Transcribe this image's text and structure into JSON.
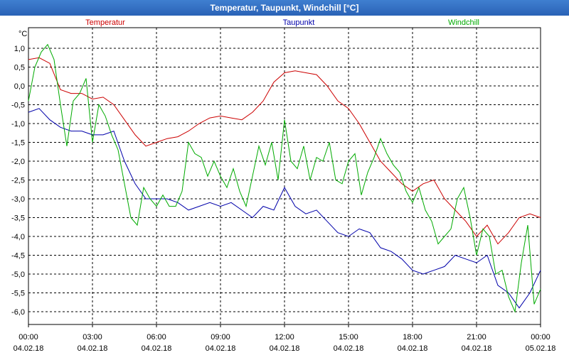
{
  "window": {
    "title": "Temperatur, Taupunkt, Windchill [°C]"
  },
  "chart_data": {
    "type": "line",
    "title": "Temperatur, Taupunkt, Windchill [°C]",
    "ylabel": "°C",
    "xlabel": "",
    "ylim": [
      -6.5,
      1.5
    ],
    "xlim": [
      0,
      24
    ],
    "grid": true,
    "legend_placement": "top",
    "x_ticks": [
      {
        "time": "00:00",
        "date": "04.02.18"
      },
      {
        "time": "03:00",
        "date": "04.02.18"
      },
      {
        "time": "06:00",
        "date": "04.02.18"
      },
      {
        "time": "09:00",
        "date": "04.02.18"
      },
      {
        "time": "12:00",
        "date": "04.02.18"
      },
      {
        "time": "15:00",
        "date": "04.02.18"
      },
      {
        "time": "18:00",
        "date": "04.02.18"
      },
      {
        "time": "21:00",
        "date": "04.02.18"
      },
      {
        "time": "00:00",
        "date": "05.02.18"
      }
    ],
    "y_ticks": [
      "1,0",
      "0,5",
      "0,0",
      "-0,5",
      "-1,0",
      "-1,5",
      "-2,0",
      "-2,5",
      "-3,0",
      "-3,5",
      "-4,0",
      "-4,5",
      "-5,0",
      "-5,5",
      "-6,0"
    ],
    "y_tick_values": [
      1.0,
      0.5,
      0.0,
      -0.5,
      -1.0,
      -1.5,
      -2.0,
      -2.5,
      -3.0,
      -3.5,
      -4.0,
      -4.5,
      -5.0,
      -5.5,
      -6.0
    ],
    "series": [
      {
        "name": "Temperatur",
        "color": "#cc0000",
        "x": [
          0,
          0.5,
          1,
          1.5,
          2,
          2.5,
          3,
          3.5,
          4,
          4.5,
          5,
          5.5,
          6,
          6.5,
          7,
          7.5,
          8,
          8.5,
          9,
          9.5,
          10,
          10.5,
          11,
          11.5,
          12,
          12.5,
          13,
          13.5,
          14,
          14.5,
          15,
          15.5,
          16,
          16.5,
          17,
          17.5,
          18,
          18.5,
          19,
          19.5,
          20,
          20.5,
          21,
          21.5,
          22,
          22.5,
          23,
          23.5,
          24
        ],
        "values": [
          0.7,
          0.75,
          0.6,
          -0.1,
          -0.2,
          -0.2,
          -0.35,
          -0.3,
          -0.5,
          -0.9,
          -1.3,
          -1.6,
          -1.5,
          -1.4,
          -1.35,
          -1.2,
          -1.0,
          -0.85,
          -0.8,
          -0.85,
          -0.9,
          -0.7,
          -0.4,
          0.1,
          0.35,
          0.4,
          0.35,
          0.3,
          0.0,
          -0.4,
          -0.6,
          -1.0,
          -1.5,
          -2.0,
          -2.3,
          -2.6,
          -2.8,
          -2.6,
          -2.5,
          -3.0,
          -3.3,
          -3.6,
          -4.0,
          -3.7,
          -4.2,
          -3.9,
          -3.5,
          -3.4,
          -3.5
        ]
      },
      {
        "name": "Taupunkt",
        "color": "#0000aa",
        "x": [
          0,
          0.5,
          1,
          1.5,
          2,
          2.5,
          3,
          3.5,
          4,
          4.5,
          5,
          5.5,
          6,
          6.5,
          7,
          7.5,
          8,
          8.5,
          9,
          9.5,
          10,
          10.5,
          11,
          11.5,
          12,
          12.5,
          13,
          13.5,
          14,
          14.5,
          15,
          15.5,
          16,
          16.5,
          17,
          17.5,
          18,
          18.5,
          19,
          19.5,
          20,
          20.5,
          21,
          21.5,
          22,
          22.5,
          23,
          23.5,
          24
        ],
        "values": [
          -0.7,
          -0.6,
          -0.9,
          -1.1,
          -1.2,
          -1.2,
          -1.3,
          -1.3,
          -1.2,
          -2.0,
          -2.6,
          -3.0,
          -3.0,
          -3.0,
          -3.1,
          -3.3,
          -3.2,
          -3.1,
          -3.2,
          -3.1,
          -3.3,
          -3.5,
          -3.2,
          -3.3,
          -2.7,
          -3.2,
          -3.4,
          -3.3,
          -3.6,
          -3.9,
          -4.0,
          -3.8,
          -3.9,
          -4.3,
          -4.4,
          -4.6,
          -4.9,
          -5.0,
          -4.9,
          -4.8,
          -4.5,
          -4.6,
          -4.7,
          -4.5,
          -5.3,
          -5.5,
          -5.9,
          -5.5,
          -4.9
        ]
      },
      {
        "name": "Windchill",
        "color": "#00aa00",
        "x": [
          0,
          0.3,
          0.6,
          0.9,
          1.2,
          1.5,
          1.8,
          2.1,
          2.4,
          2.7,
          3.0,
          3.3,
          3.6,
          3.9,
          4.2,
          4.5,
          4.8,
          5.1,
          5.4,
          5.7,
          6.0,
          6.3,
          6.6,
          6.9,
          7.2,
          7.5,
          7.8,
          8.1,
          8.4,
          8.7,
          9.0,
          9.3,
          9.6,
          9.9,
          10.2,
          10.5,
          10.8,
          11.1,
          11.4,
          11.7,
          12.0,
          12.3,
          12.6,
          12.9,
          13.2,
          13.5,
          13.8,
          14.1,
          14.4,
          14.7,
          15.0,
          15.3,
          15.6,
          15.9,
          16.2,
          16.5,
          16.8,
          17.1,
          17.4,
          17.7,
          18.0,
          18.3,
          18.6,
          18.9,
          19.2,
          19.5,
          19.8,
          20.1,
          20.4,
          20.7,
          21.0,
          21.3,
          21.6,
          21.9,
          22.2,
          22.5,
          22.8,
          23.1,
          23.4,
          23.7,
          24.0
        ],
        "values": [
          -0.4,
          0.5,
          0.9,
          1.1,
          0.7,
          -0.5,
          -1.6,
          -0.4,
          -0.2,
          0.2,
          -1.5,
          -0.5,
          -0.8,
          -1.3,
          -1.7,
          -2.6,
          -3.5,
          -3.7,
          -2.7,
          -3.0,
          -3.2,
          -2.9,
          -3.2,
          -3.2,
          -2.8,
          -1.5,
          -1.8,
          -1.9,
          -2.4,
          -2.0,
          -2.4,
          -2.7,
          -2.2,
          -2.8,
          -3.2,
          -2.4,
          -1.6,
          -2.1,
          -1.5,
          -2.5,
          -0.9,
          -2.0,
          -2.2,
          -1.6,
          -2.5,
          -1.9,
          -2.0,
          -1.5,
          -2.5,
          -2.6,
          -2.0,
          -1.8,
          -2.9,
          -2.3,
          -1.9,
          -1.4,
          -1.8,
          -2.1,
          -2.3,
          -2.8,
          -3.1,
          -2.7,
          -3.3,
          -3.6,
          -4.2,
          -4.0,
          -3.8,
          -3.0,
          -2.7,
          -3.5,
          -4.5,
          -3.8,
          -4.0,
          -5.0,
          -4.9,
          -5.6,
          -6.0,
          -4.7,
          -3.7,
          -5.8,
          -5.4
        ]
      }
    ]
  }
}
